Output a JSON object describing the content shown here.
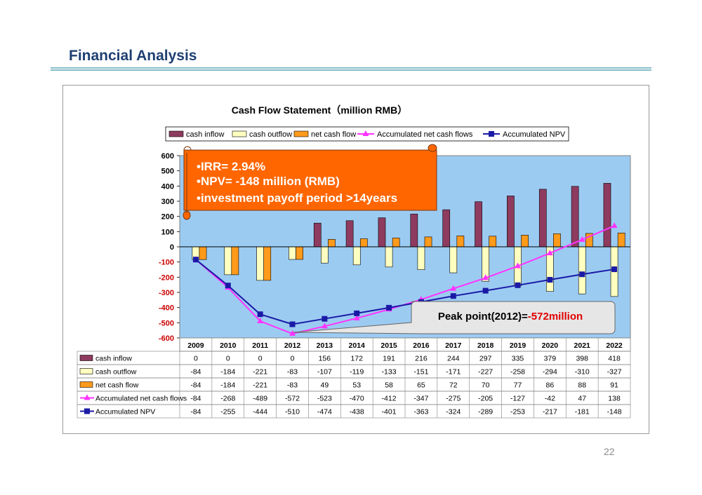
{
  "page": {
    "title": "Financial Analysis",
    "page_number": "22"
  },
  "callouts": {
    "irr": "•IRR= 2.94%",
    "npv": "•NPV= -148 million (RMB)",
    "payoff": "•investment payoff period >14years",
    "peak_prefix": "Peak point(2012)=",
    "peak_value": "-572million"
  },
  "colors": {
    "plot_bg": "#9ccbf2",
    "cash_inflow": "#8e3b5f",
    "cash_outflow": "#ffffc0",
    "net_cash_flow": "#ff9a1a",
    "accumulated_net": "#ff33ff",
    "accumulated_npv": "#1a1aa6",
    "orange_callout": "#ff6600",
    "negative_tick": "#cc0000"
  },
  "chart_data": {
    "type": "bar",
    "title": "Cash Flow Statement（million RMB）",
    "categories": [
      "2009",
      "2010",
      "2011",
      "2012",
      "2013",
      "2014",
      "2015",
      "2016",
      "2017",
      "2018",
      "2019",
      "2020",
      "2021",
      "2022"
    ],
    "ylim": [
      -600,
      600
    ],
    "yticks": [
      "600",
      "500",
      "400",
      "300",
      "200",
      "100",
      "0",
      "-100",
      "-200",
      "-300",
      "-400",
      "-500",
      "-600"
    ],
    "grid": false,
    "legend_position": "top",
    "data_table": true,
    "series": [
      {
        "name": "cash inflow",
        "kind": "bar",
        "values": [
          0,
          0,
          0,
          0,
          156,
          172,
          191,
          216,
          244,
          297,
          335,
          379,
          398,
          418
        ]
      },
      {
        "name": "cash outflow",
        "kind": "bar",
        "values": [
          -84,
          -184,
          -221,
          -83,
          -107,
          -119,
          -133,
          -151,
          -171,
          -227,
          -258,
          -294,
          -310,
          -327
        ]
      },
      {
        "name": "net cash flow",
        "kind": "bar",
        "values": [
          -84,
          -184,
          -221,
          -83,
          49,
          53,
          58,
          65,
          72,
          70,
          77,
          86,
          88,
          91
        ]
      },
      {
        "name": "Accumulated net cash flows",
        "kind": "line",
        "values": [
          -84,
          -268,
          -489,
          -572,
          -523,
          -470,
          -412,
          -347,
          -275,
          -205,
          -127,
          -42,
          47,
          138
        ]
      },
      {
        "name": "Accumulated NPV",
        "kind": "line",
        "values": [
          -84,
          -255,
          -444,
          -510,
          -474,
          -438,
          -401,
          -363,
          -324,
          -289,
          -253,
          -217,
          -181,
          -148
        ]
      }
    ]
  }
}
